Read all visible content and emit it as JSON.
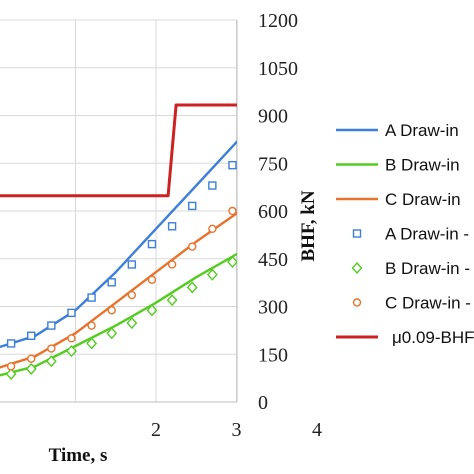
{
  "chart_data": {
    "type": "line",
    "xlabel": "Time, s",
    "y2label": "BHF, kN",
    "xlim": [
      0.0,
      4.0
    ],
    "y2lim": [
      0,
      1200
    ],
    "xticks": [
      "2",
      "3",
      "4"
    ],
    "y2ticks": [
      "0",
      "150",
      "300",
      "450",
      "600",
      "750",
      "900",
      "1050",
      "1200"
    ],
    "grid": true,
    "legend_position": "right",
    "series": [
      {
        "name": "A Draw-in",
        "style": "line",
        "color": "#3d7fd9",
        "x": [
          0.0,
          0.5,
          1.0,
          1.5,
          2.0,
          2.5,
          3.0,
          3.5,
          3.78
        ],
        "y": [
          0.21,
          0.26,
          0.36,
          0.51,
          0.68,
          0.85,
          1.02,
          1.18,
          1.28
        ]
      },
      {
        "name": "B Draw-in",
        "style": "line",
        "color": "#55cc22",
        "x": [
          0.0,
          0.5,
          1.0,
          1.5,
          2.0,
          2.5,
          3.0,
          3.5,
          3.78
        ],
        "y": [
          0.1,
          0.14,
          0.22,
          0.3,
          0.39,
          0.49,
          0.58,
          0.67,
          0.72
        ]
      },
      {
        "name": "C Draw-in",
        "style": "line",
        "color": "#e8732c",
        "x": [
          0.0,
          0.5,
          1.0,
          1.5,
          2.0,
          2.5,
          3.0,
          3.5,
          3.78
        ],
        "y": [
          0.13,
          0.18,
          0.27,
          0.39,
          0.51,
          0.63,
          0.74,
          0.86,
          0.95
        ]
      },
      {
        "name": "A Draw-in -",
        "style": "square",
        "color": "#3d7fd9",
        "x": [
          0.2,
          0.45,
          0.7,
          0.95,
          1.2,
          1.45,
          1.7,
          1.95,
          2.2,
          2.45,
          2.7,
          2.95,
          3.2,
          3.45,
          3.75
        ],
        "y": [
          0.23,
          0.26,
          0.3,
          0.35,
          0.41,
          0.47,
          0.54,
          0.62,
          0.69,
          0.77,
          0.85,
          0.93,
          1.01,
          1.1,
          1.29
        ]
      },
      {
        "name": "B Draw-in -",
        "style": "diamond",
        "color": "#55cc22",
        "x": [
          0.2,
          0.45,
          0.7,
          0.95,
          1.2,
          1.45,
          1.7,
          1.95,
          2.2,
          2.45,
          2.7,
          2.95,
          3.2,
          3.45,
          3.75
        ],
        "y": [
          0.11,
          0.13,
          0.16,
          0.2,
          0.23,
          0.27,
          0.31,
          0.36,
          0.4,
          0.45,
          0.5,
          0.55,
          0.6,
          0.65,
          0.73
        ]
      },
      {
        "name": "C Draw-in -",
        "style": "circle",
        "color": "#e8732c",
        "x": [
          0.2,
          0.45,
          0.7,
          0.95,
          1.2,
          1.45,
          1.7,
          1.95,
          2.2,
          2.45,
          2.7,
          2.95,
          3.2,
          3.45,
          3.75
        ],
        "y": [
          0.14,
          0.17,
          0.21,
          0.25,
          0.3,
          0.36,
          0.42,
          0.48,
          0.54,
          0.61,
          0.68,
          0.75,
          0.82,
          0.89,
          1.01
        ]
      },
      {
        "name": "μ0.09-BHF",
        "style": "step",
        "color": "#cc2222",
        "axis": "right",
        "x": [
          0.0,
          2.15,
          2.25,
          3.78
        ],
        "y": [
          648,
          648,
          933,
          933
        ]
      }
    ]
  }
}
